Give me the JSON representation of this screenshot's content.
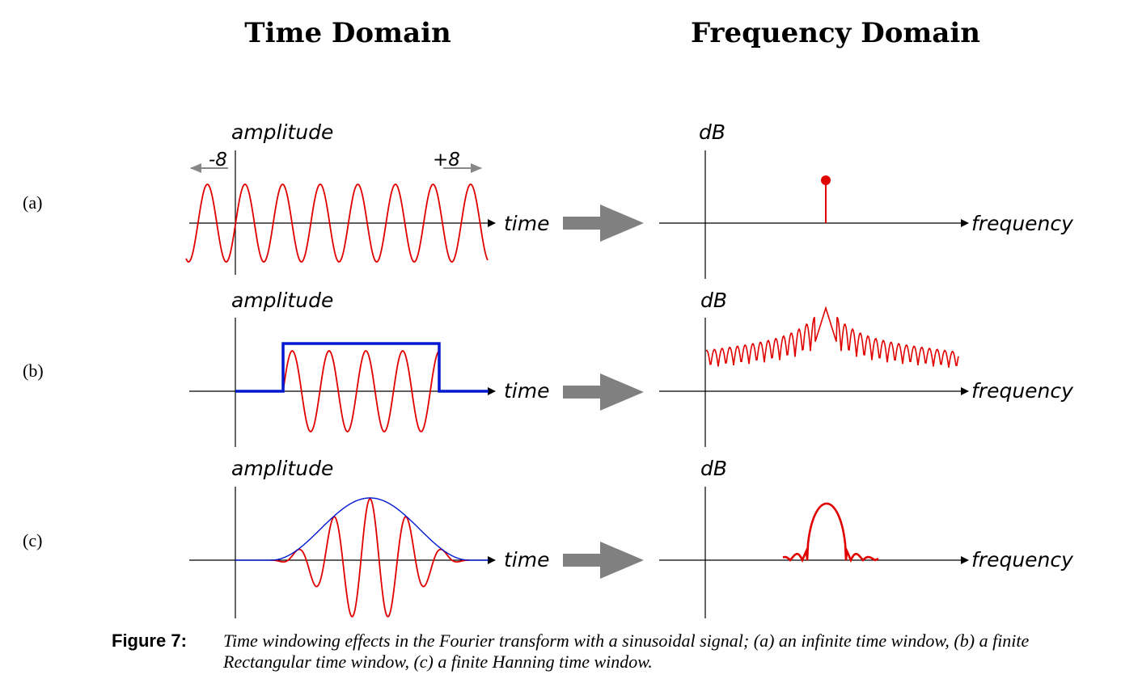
{
  "headings": {
    "time": "Time Domain",
    "frequency": "Frequency Domain"
  },
  "rows": [
    {
      "label": "(a)",
      "time_axis": {
        "y_label": "amplitude",
        "x_label": "time",
        "left_bound": "-8",
        "right_bound": "+8"
      },
      "freq_axis": {
        "y_label": "dB",
        "x_label": "frequency"
      }
    },
    {
      "label": "(b)",
      "time_axis": {
        "y_label": "amplitude",
        "x_label": "time"
      },
      "freq_axis": {
        "y_label": "dB",
        "x_label": "frequency"
      }
    },
    {
      "label": "(c)",
      "time_axis": {
        "y_label": "amplitude",
        "x_label": "time"
      },
      "freq_axis": {
        "y_label": "dB",
        "x_label": "frequency"
      }
    }
  ],
  "caption": {
    "label": "Figure 7:",
    "text": "Time windowing effects in the Fourier transform with a sinusoidal signal; (a) an infinite time window, (b) a finite Rectangular time window, (c) a finite Hanning time window."
  },
  "colors": {
    "signal": "#e00000",
    "window": "#0018d0",
    "axis": "#000000",
    "arrow": "#808080"
  }
}
